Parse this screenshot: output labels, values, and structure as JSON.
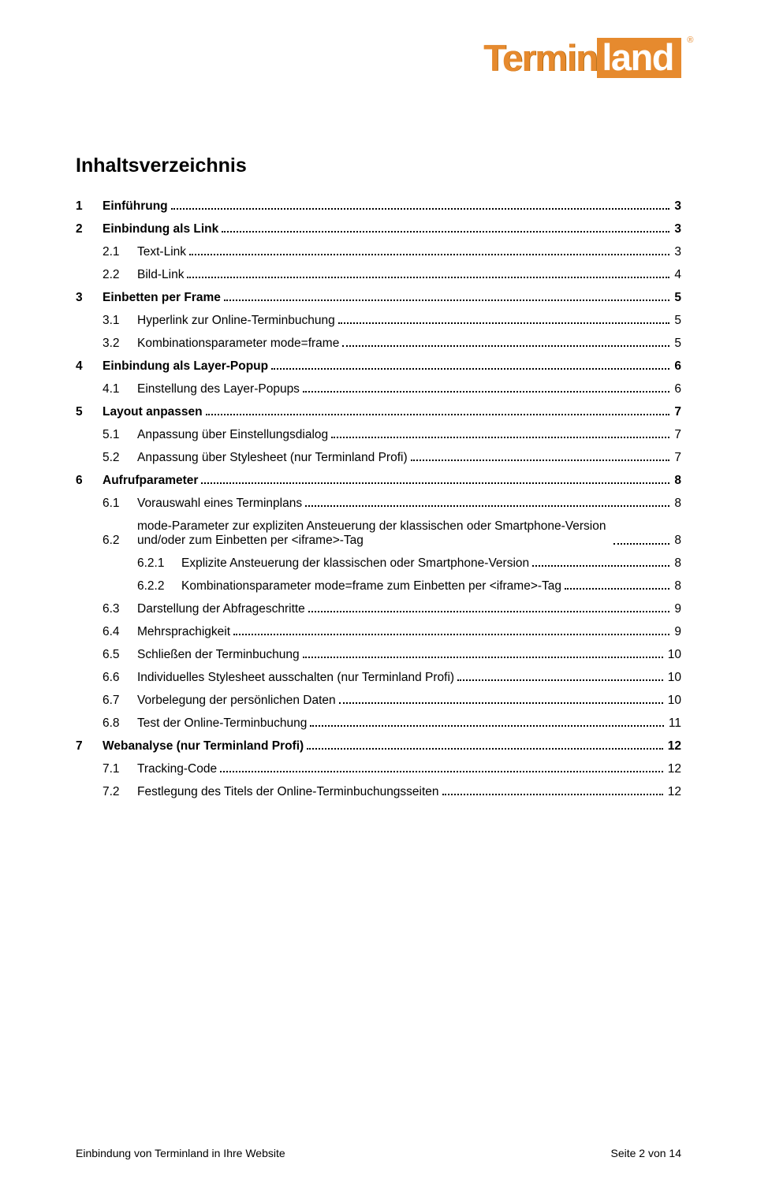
{
  "logo": {
    "part1": "Termin",
    "part2": "land",
    "reg": "®"
  },
  "title": "Inhaltsverzeichnis",
  "toc": [
    {
      "lvl": 0,
      "num": "1",
      "label": "Einführung",
      "page": "3"
    },
    {
      "lvl": 0,
      "num": "2",
      "label": "Einbindung als Link",
      "page": "3"
    },
    {
      "lvl": 1,
      "num": "2.1",
      "label": "Text-Link",
      "page": "3"
    },
    {
      "lvl": 1,
      "num": "2.2",
      "label": "Bild-Link",
      "page": "4"
    },
    {
      "lvl": 0,
      "num": "3",
      "label": "Einbetten per Frame",
      "page": "5"
    },
    {
      "lvl": 1,
      "num": "3.1",
      "label": "Hyperlink zur Online-Terminbuchung",
      "page": "5"
    },
    {
      "lvl": 1,
      "num": "3.2",
      "label": "Kombinationsparameter mode=frame",
      "page": "5"
    },
    {
      "lvl": 0,
      "num": "4",
      "label": "Einbindung als Layer-Popup",
      "page": "6"
    },
    {
      "lvl": 1,
      "num": "4.1",
      "label": "Einstellung des Layer-Popups",
      "page": "6"
    },
    {
      "lvl": 0,
      "num": "5",
      "label": "Layout anpassen",
      "page": "7"
    },
    {
      "lvl": 1,
      "num": "5.1",
      "label": "Anpassung über Einstellungsdialog",
      "page": "7"
    },
    {
      "lvl": 1,
      "num": "5.2",
      "label": "Anpassung über Stylesheet (nur Terminland Profi)",
      "page": "7"
    },
    {
      "lvl": 0,
      "num": "6",
      "label": "Aufrufparameter",
      "page": "8"
    },
    {
      "lvl": 1,
      "num": "6.1",
      "label": "Vorauswahl eines Terminplans",
      "page": "8"
    },
    {
      "lvl": 1,
      "num": "6.2",
      "label": "mode-Parameter zur expliziten Ansteuerung der klassischen oder Smartphone-Version und/oder zum Einbetten per <iframe>-Tag",
      "page": "8",
      "wrap": true
    },
    {
      "lvl": 2,
      "num": "6.2.1",
      "label": "Explizite Ansteuerung der klassischen oder Smartphone-Version",
      "page": "8"
    },
    {
      "lvl": 2,
      "num": "6.2.2",
      "label": "Kombinationsparameter mode=frame zum Einbetten per <iframe>-Tag",
      "page": "8"
    },
    {
      "lvl": 1,
      "num": "6.3",
      "label": "Darstellung der Abfrageschritte",
      "page": "9"
    },
    {
      "lvl": 1,
      "num": "6.4",
      "label": "Mehrsprachigkeit",
      "page": "9"
    },
    {
      "lvl": 1,
      "num": "6.5",
      "label": "Schließen der Terminbuchung",
      "page": "10"
    },
    {
      "lvl": 1,
      "num": "6.6",
      "label": "Individuelles Stylesheet ausschalten (nur Terminland Profi)",
      "page": "10"
    },
    {
      "lvl": 1,
      "num": "6.7",
      "label": "Vorbelegung der persönlichen Daten",
      "page": "10"
    },
    {
      "lvl": 1,
      "num": "6.8",
      "label": "Test der Online-Terminbuchung",
      "page": "11"
    },
    {
      "lvl": 0,
      "num": "7",
      "label": "Webanalyse (nur Terminland Profi)",
      "page": "12"
    },
    {
      "lvl": 1,
      "num": "7.1",
      "label": "Tracking-Code",
      "page": "12"
    },
    {
      "lvl": 1,
      "num": "7.2",
      "label": "Festlegung des Titels der Online-Terminbuchungsseiten",
      "page": "12"
    }
  ],
  "footer": {
    "left": "Einbindung von Terminland in Ihre Website",
    "right": "Seite 2 von 14"
  },
  "colors": {
    "brand_orange": "#e68a2e",
    "text": "#000000",
    "background": "#ffffff"
  },
  "typography": {
    "body_family": "Arial",
    "title_size_pt": 19,
    "body_size_pt": 12,
    "footer_size_pt": 10
  }
}
